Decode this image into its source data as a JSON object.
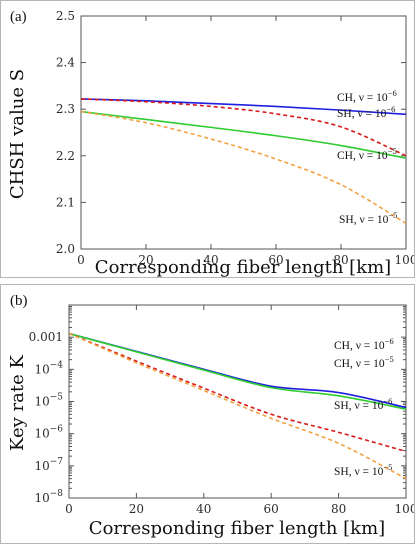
{
  "chart_data": [
    {
      "type": "line",
      "panel_label": "(a)",
      "xlabel": "Corresponding fiber length [km]",
      "ylabel": "CHSH value S",
      "xlim": [
        0,
        100
      ],
      "ylim": [
        2.0,
        2.5
      ],
      "yscale": "linear",
      "xticks": [
        0,
        20,
        40,
        60,
        80,
        100
      ],
      "yticks": [
        2.0,
        2.1,
        2.2,
        2.3,
        2.4,
        2.5
      ],
      "ytick_labels": [
        "2.0",
        "2.1",
        "2.2",
        "2.3",
        "2.4",
        "2.5"
      ],
      "x": [
        0,
        20,
        40,
        60,
        80,
        100
      ],
      "series": [
        {
          "color": "#1f1fe0",
          "dash": "solid",
          "values": [
            2.322,
            2.318,
            2.312,
            2.306,
            2.298,
            2.289
          ]
        },
        {
          "color": "#d81818",
          "dash": "dashed",
          "values": [
            2.322,
            2.316,
            2.306,
            2.29,
            2.262,
            2.2
          ]
        },
        {
          "color": "#2ecc2e",
          "dash": "solid",
          "values": [
            2.295,
            2.278,
            2.261,
            2.243,
            2.222,
            2.195
          ]
        },
        {
          "color": "#f2a040",
          "dash": "dashed",
          "values": [
            2.295,
            2.271,
            2.236,
            2.193,
            2.138,
            2.055
          ]
        }
      ],
      "annotations": [
        {
          "text": "CH, ν = 10",
          "exponent": "−6"
        },
        {
          "text": "SH, ν = 10",
          "exponent": "−6"
        },
        {
          "text": "CH, ν = 10",
          "exponent": "−5"
        },
        {
          "text": "SH, ν = 10",
          "exponent": "−5"
        }
      ]
    },
    {
      "type": "line",
      "panel_label": "(b)",
      "xlabel": "Corresponding fiber length [km]",
      "ylabel": "Key rate K",
      "xlim": [
        0,
        100
      ],
      "ylim": [
        1e-08,
        0.01
      ],
      "yscale": "log",
      "xticks": [
        0,
        20,
        40,
        60,
        80,
        100
      ],
      "yticks": [
        1e-08,
        1e-07,
        1e-06,
        1e-05,
        0.0001,
        0.001
      ],
      "ytick_labels": [
        {
          "base": "10",
          "exp": "−8"
        },
        {
          "base": "10",
          "exp": "−7"
        },
        {
          "base": "10",
          "exp": "−6"
        },
        {
          "base": "10",
          "exp": "−5"
        },
        {
          "base": "10",
          "exp": "−4"
        },
        {
          "base": "0.001",
          "exp": ""
        }
      ],
      "x": [
        0,
        20,
        40,
        60,
        80,
        100
      ],
      "series": [
        {
          "color": "#1f1fe0",
          "dash": "solid",
          "values": [
            0.0013,
            0.00036,
            0.0001,
            3e-05,
            1.9e-05,
            6.5e-06
          ]
        },
        {
          "color": "#2ecc2e",
          "dash": "solid",
          "values": [
            0.0013,
            0.00035,
            9.5e-05,
            2.7e-05,
            1.5e-05,
            5.8e-06
          ]
        },
        {
          "color": "#d81818",
          "dash": "dashed",
          "values": [
            0.0013,
            0.00018,
            2.6e-05,
            4e-06,
            1.1e-06,
            2.8e-07
          ]
        },
        {
          "color": "#f2a040",
          "dash": "dashed",
          "values": [
            0.0013,
            0.00016,
            2.2e-05,
            3e-06,
            5e-07,
            4e-08
          ]
        }
      ],
      "annotations": [
        {
          "text": "CH, ν = 10",
          "exponent": "−6"
        },
        {
          "text": "CH, ν = 10",
          "exponent": "−5"
        },
        {
          "text": "SH, ν = 10",
          "exponent": "−6"
        },
        {
          "text": "SH, ν = 10",
          "exponent": "−5"
        }
      ]
    }
  ]
}
